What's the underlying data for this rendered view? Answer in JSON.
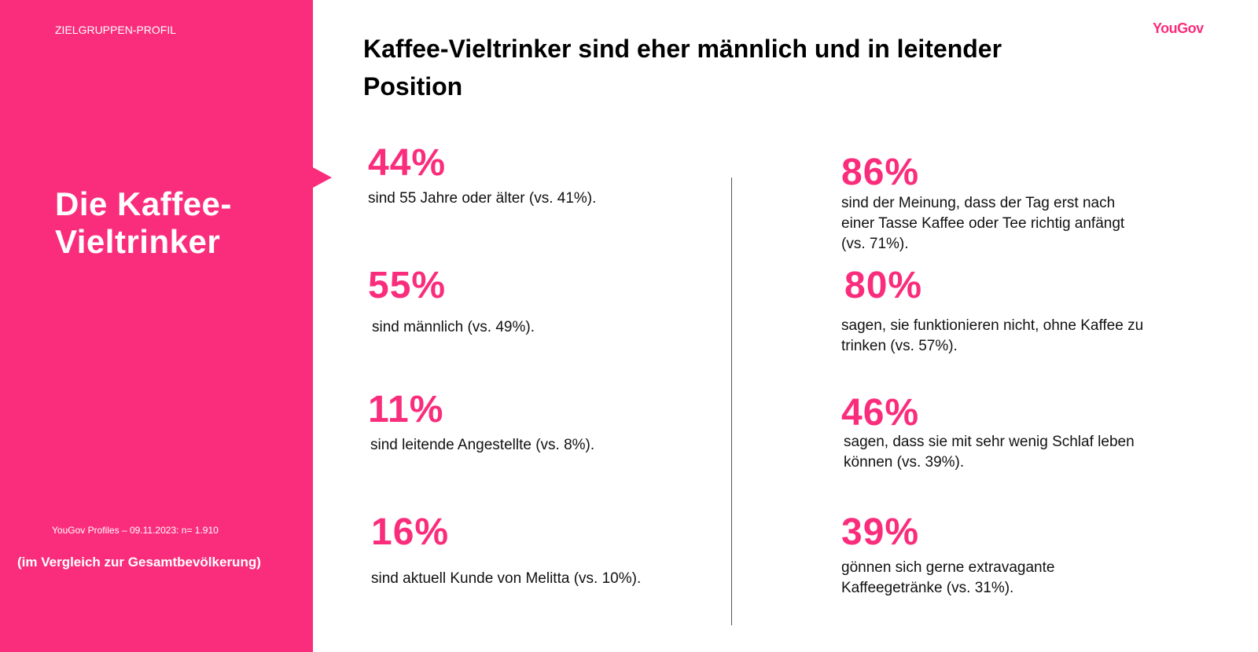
{
  "colors": {
    "accent": "#fa2d7c"
  },
  "sidebar": {
    "eyebrow": "ZIELGRUPPEN-PROFIL",
    "title": "Die Kaffee-Vieltrinker",
    "source": "YouGov Profiles – 09.11.2023: n= 1.910",
    "comparison_note": "(im Vergleich zur Gesamtbevölkerung)"
  },
  "logo": {
    "text": "YouGov"
  },
  "headline": "Kaffee-Vieltrinker sind eher männlich und in leitender Position",
  "stats_left": [
    {
      "value": "44%",
      "text": "sind 55 Jahre oder älter (vs. 41%)."
    },
    {
      "value": "55%",
      "text": "sind männlich (vs. 49%)."
    },
    {
      "value": "11%",
      "text": "sind leitende Angestellte (vs. 8%)."
    },
    {
      "value": "16%",
      "text": "sind aktuell Kunde von Melitta (vs. 10%)."
    }
  ],
  "stats_right": [
    {
      "value": "86%",
      "text": "sind der Meinung, dass der Tag erst nach einer Tasse Kaffee oder Tee richtig anfängt (vs. 71%)."
    },
    {
      "value": "80%",
      "text": "sagen, sie funktionieren nicht, ohne Kaffee zu trinken (vs. 57%)."
    },
    {
      "value": "46%",
      "text": "sagen, dass sie mit sehr wenig Schlaf leben können (vs. 39%)."
    },
    {
      "value": "39%",
      "text": "gönnen sich gerne extravagante Kaffeegetränke (vs. 31%)."
    }
  ]
}
